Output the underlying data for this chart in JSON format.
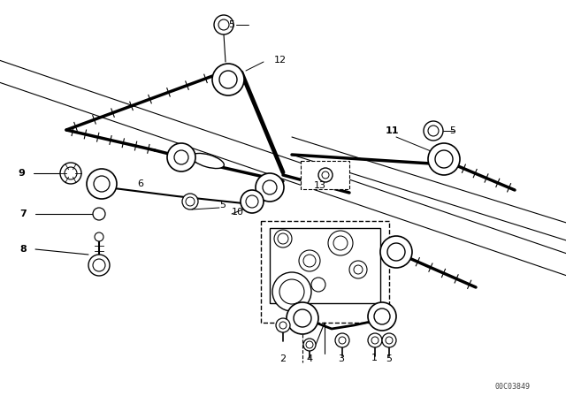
{
  "bg_color": "#ffffff",
  "lc": "#000000",
  "watermark": "00C03849",
  "fig_width": 6.4,
  "fig_height": 4.48,
  "dpi": 100,
  "diag_lines": [
    [
      [
        0,
        80
      ],
      [
        640,
        310
      ]
    ],
    [
      [
        0,
        110
      ],
      [
        640,
        345
      ]
    ],
    [
      [
        60,
        130
      ],
      [
        640,
        370
      ]
    ],
    [
      [
        0,
        115
      ],
      [
        640,
        355
      ]
    ]
  ],
  "labels": {
    "5_top": [
      246,
      18,
      "5"
    ],
    "12": [
      310,
      62,
      "12"
    ],
    "9": [
      36,
      196,
      "9"
    ],
    "6": [
      158,
      208,
      "6"
    ],
    "5_mid": [
      248,
      228,
      "5"
    ],
    "10": [
      265,
      236,
      "10"
    ],
    "7": [
      33,
      242,
      "7"
    ],
    "8": [
      33,
      282,
      "8"
    ],
    "11": [
      436,
      152,
      "11"
    ],
    "5_r": [
      498,
      148,
      "5"
    ],
    "13": [
      363,
      197,
      "13"
    ],
    "2": [
      320,
      402,
      "2"
    ],
    "4": [
      348,
      402,
      "4"
    ],
    "3": [
      382,
      402,
      "3"
    ],
    "1": [
      420,
      402,
      "1"
    ],
    "5_bot": [
      432,
      402,
      "5"
    ]
  },
  "rod_segments": [
    [
      [
        75,
        147
      ],
      [
        185,
        174
      ]
    ],
    [
      [
        214,
        182
      ],
      [
        320,
        205
      ]
    ],
    [
      [
        340,
        198
      ],
      [
        640,
        275
      ]
    ],
    [
      [
        430,
        228
      ],
      [
        620,
        275
      ]
    ]
  ]
}
